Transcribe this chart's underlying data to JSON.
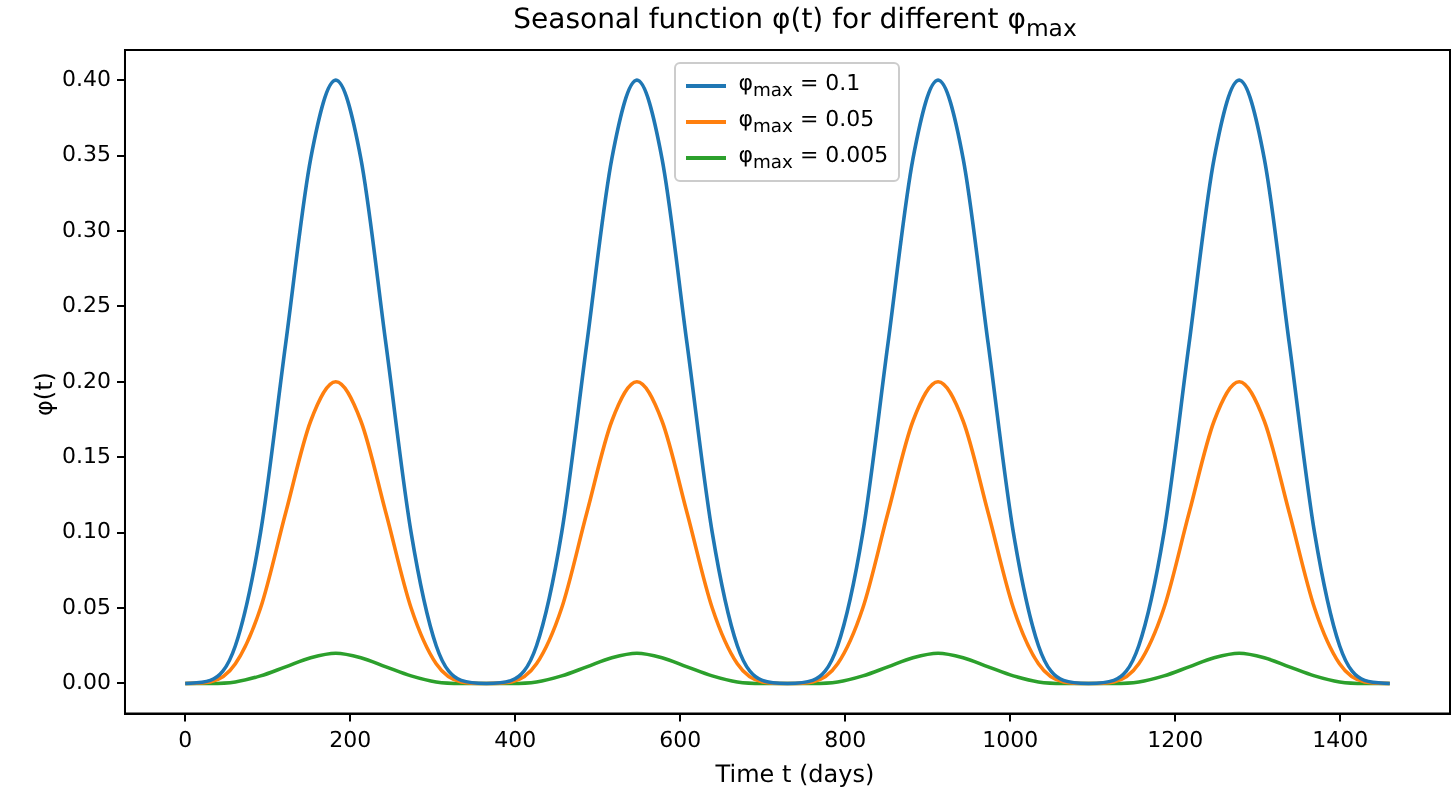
{
  "chart_data": {
    "type": "line",
    "title": "Seasonal function φ(t) for different φ$_{max}$",
    "xlabel": "Time t (days)",
    "ylabel": "φ(t)",
    "x": [
      0,
      30.4,
      60.8,
      91.3,
      121.7,
      152.1,
      182.5,
      212.9,
      243.3,
      273.8,
      304.2,
      334.6,
      365,
      395.4,
      425.8,
      456.3,
      486.7,
      517.1,
      547.5,
      577.9,
      608.3,
      638.8,
      669.2,
      699.6,
      730,
      760.4,
      790.8,
      821.3,
      851.7,
      882.1,
      912.5,
      942.9,
      973.3,
      1003.8,
      1034.2,
      1064.6,
      1095,
      1125.4,
      1155.8,
      1186.3,
      1216.7,
      1247.1,
      1277.5,
      1307.9,
      1338.3,
      1368.8,
      1399.2,
      1429.6,
      1460
    ],
    "series": [
      {
        "name": "φ$_{max}$ = 0.1",
        "color": "#1f77b4",
        "values": [
          0,
          0.002,
          0.025,
          0.1,
          0.225,
          0.348,
          0.4,
          0.348,
          0.225,
          0.1,
          0.025,
          0.002,
          0,
          0.002,
          0.025,
          0.1,
          0.225,
          0.348,
          0.4,
          0.348,
          0.225,
          0.1,
          0.025,
          0.002,
          0,
          0.002,
          0.025,
          0.1,
          0.225,
          0.348,
          0.4,
          0.348,
          0.225,
          0.1,
          0.025,
          0.002,
          0,
          0.002,
          0.025,
          0.1,
          0.225,
          0.348,
          0.4,
          0.348,
          0.225,
          0.1,
          0.025,
          0.002,
          0
        ]
      },
      {
        "name": "φ$_{max}$ = 0.05",
        "color": "#ff7f0e",
        "values": [
          0,
          0.001,
          0.013,
          0.05,
          0.113,
          0.174,
          0.2,
          0.174,
          0.113,
          0.05,
          0.013,
          0.001,
          0,
          0.001,
          0.013,
          0.05,
          0.113,
          0.174,
          0.2,
          0.174,
          0.113,
          0.05,
          0.013,
          0.001,
          0,
          0.001,
          0.013,
          0.05,
          0.113,
          0.174,
          0.2,
          0.174,
          0.113,
          0.05,
          0.013,
          0.001,
          0,
          0.001,
          0.013,
          0.05,
          0.113,
          0.174,
          0.2,
          0.174,
          0.113,
          0.05,
          0.013,
          0.001,
          0
        ]
      },
      {
        "name": "φ$_{max}$ = 0.005",
        "color": "#2ca02c",
        "values": [
          0,
          0,
          0.001,
          0.005,
          0.011,
          0.017,
          0.02,
          0.017,
          0.011,
          0.005,
          0.001,
          0,
          0,
          0,
          0.001,
          0.005,
          0.011,
          0.017,
          0.02,
          0.017,
          0.011,
          0.005,
          0.001,
          0,
          0,
          0,
          0.001,
          0.005,
          0.011,
          0.017,
          0.02,
          0.017,
          0.011,
          0.005,
          0.001,
          0,
          0,
          0,
          0.001,
          0.005,
          0.011,
          0.017,
          0.02,
          0.017,
          0.011,
          0.005,
          0.001,
          0,
          0
        ]
      }
    ],
    "xlim": [
      -73,
      1533
    ],
    "xticks": [
      0,
      200,
      400,
      600,
      800,
      1000,
      1200,
      1400
    ],
    "ylim": [
      -0.02,
      0.42
    ],
    "yticks": [
      {
        "value": 0,
        "label": "0.00"
      },
      {
        "value": 0.05,
        "label": "0.05"
      },
      {
        "value": 0.1,
        "label": "0.10"
      },
      {
        "value": 0.15,
        "label": "0.15"
      },
      {
        "value": 0.2,
        "label": "0.20"
      },
      {
        "value": 0.25,
        "label": "0.25"
      },
      {
        "value": 0.3,
        "label": "0.30"
      },
      {
        "value": 0.35,
        "label": "0.35"
      },
      {
        "value": 0.4,
        "label": "0.40"
      }
    ],
    "grid": false,
    "legend": "top"
  }
}
